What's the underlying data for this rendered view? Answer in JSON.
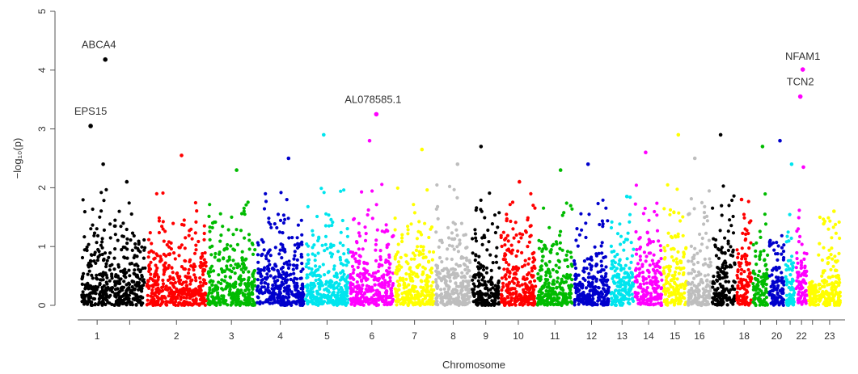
{
  "chart_data": {
    "type": "scatter",
    "subtype": "manhattan",
    "title": "",
    "xlabel": "Chromosome",
    "ylabel": "−log₁₀(p)",
    "ylim": [
      0,
      5
    ],
    "y_ticks": [
      "0",
      "1",
      "2",
      "3",
      "4",
      "5"
    ],
    "grid": false,
    "legend": "none",
    "chromosomes": [
      {
        "label": "1",
        "start": 0,
        "end": 40,
        "color": "#000000",
        "peak": 2.4
      },
      {
        "label": "",
        "start": 40,
        "end": 80,
        "color": "#000000",
        "peak": 2.1
      },
      {
        "label": "2",
        "start": 80,
        "end": 155,
        "color": "#ff0000",
        "peak": 2.55
      },
      {
        "label": "3",
        "start": 155,
        "end": 215,
        "color": "#00bb00",
        "peak": 2.3
      },
      {
        "label": "4",
        "start": 215,
        "end": 275,
        "color": "#0000cc",
        "peak": 2.5
      },
      {
        "label": "5",
        "start": 275,
        "end": 330,
        "color": "#00e5ee",
        "peak": 2.9
      },
      {
        "label": "6",
        "start": 330,
        "end": 385,
        "color": "#ff00ff",
        "peak": 2.8
      },
      {
        "label": "7",
        "start": 385,
        "end": 435,
        "color": "#ffff00",
        "peak": 2.65
      },
      {
        "label": "8",
        "start": 435,
        "end": 480,
        "color": "#bebebe",
        "peak": 2.4
      },
      {
        "label": "9",
        "start": 480,
        "end": 515,
        "color": "#000000",
        "peak": 2.7
      },
      {
        "label": "10",
        "start": 515,
        "end": 560,
        "color": "#ff0000",
        "peak": 2.1
      },
      {
        "label": "11",
        "start": 560,
        "end": 605,
        "color": "#00bb00",
        "peak": 2.3
      },
      {
        "label": "12",
        "start": 605,
        "end": 650,
        "color": "#0000cc",
        "peak": 2.4
      },
      {
        "label": "13",
        "start": 650,
        "end": 680,
        "color": "#00e5ee",
        "peak": 1.85
      },
      {
        "label": "14",
        "start": 680,
        "end": 715,
        "color": "#ff00ff",
        "peak": 2.6
      },
      {
        "label": "15",
        "start": 715,
        "end": 745,
        "color": "#ffff00",
        "peak": 2.9
      },
      {
        "label": "16",
        "start": 745,
        "end": 775,
        "color": "#bebebe",
        "peak": 2.5
      },
      {
        "label": "",
        "start": 775,
        "end": 805,
        "color": "#000000",
        "peak": 2.9
      },
      {
        "label": "18",
        "start": 805,
        "end": 825,
        "color": "#ff0000",
        "peak": 1.8
      },
      {
        "label": "",
        "start": 825,
        "end": 845,
        "color": "#00bb00",
        "peak": 2.7
      },
      {
        "label": "20",
        "start": 845,
        "end": 865,
        "color": "#0000cc",
        "peak": 2.8
      },
      {
        "label": "",
        "start": 865,
        "end": 878,
        "color": "#00e5ee",
        "peak": 2.4
      },
      {
        "label": "22",
        "start": 878,
        "end": 893,
        "color": "#ff00ff",
        "peak": 2.35
      },
      {
        "label": "",
        "start": 893,
        "end": 905,
        "color": "#ffff00",
        "peak": 0.4
      },
      {
        "label": "23",
        "start": 905,
        "end": 935,
        "color": "#ffff00",
        "peak": 1.6
      }
    ],
    "highlighted_points": [
      {
        "label": "ABCA4",
        "x": 30,
        "y": 4.18,
        "color": "#000000"
      },
      {
        "label": "EPS15",
        "x": 12,
        "y": 3.05,
        "color": "#000000"
      },
      {
        "label": "AL078585.1",
        "x": 363,
        "y": 3.25,
        "color": "#ff00ff"
      },
      {
        "label": "NFAM1",
        "x": 887,
        "y": 4.01,
        "color": "#ff00ff"
      },
      {
        "label": "TCN2",
        "x": 884,
        "y": 3.55,
        "color": "#ff00ff"
      }
    ]
  }
}
